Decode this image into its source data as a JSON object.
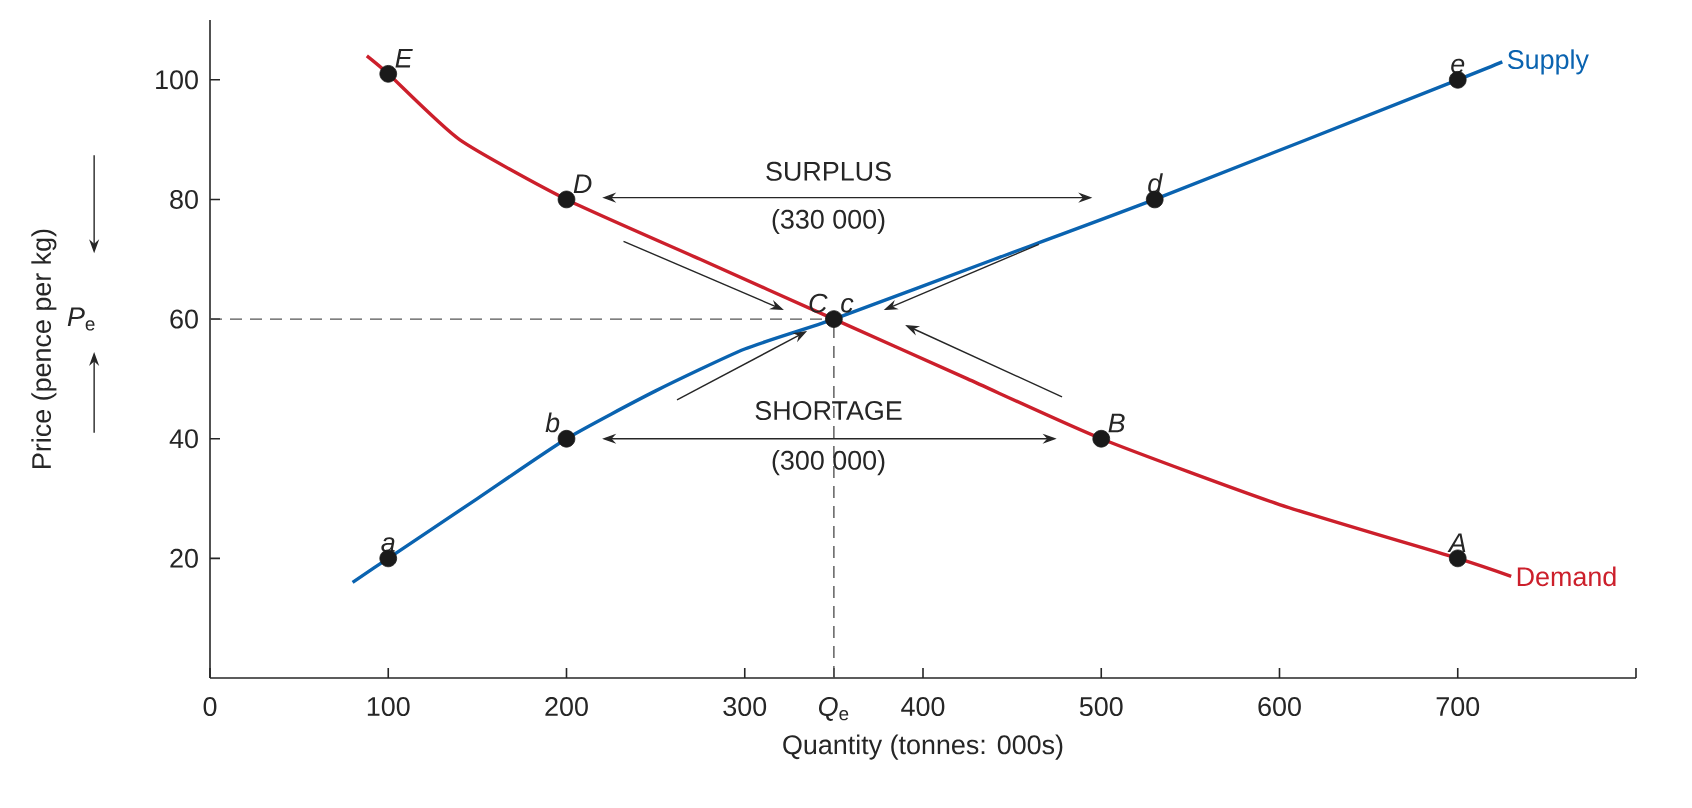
{
  "chart_data": {
    "type": "line",
    "xlabel": "Quantity (tonnes: 000s)",
    "ylabel": "Price (pence per kg)",
    "xlim": [
      0,
      800
    ],
    "ylim": [
      0,
      110
    ],
    "xticks": [
      0,
      100,
      200,
      300,
      {
        "value": 350,
        "label": "*Q*$_{e}$"
      },
      400,
      500,
      600,
      700,
      {
        "value": 800,
        "label": null
      }
    ],
    "yticks": [
      20,
      40,
      60,
      80,
      100
    ],
    "series": [
      {
        "name": "Supply",
        "color": "#0a63b0",
        "marker": "none",
        "line_style": "solid",
        "x": [
          80,
          100,
          150,
          200,
          250,
          300,
          350,
          440,
          530,
          700,
          725
        ],
        "values": [
          16,
          20,
          30,
          40,
          48,
          55,
          60,
          70,
          80,
          100,
          103
        ]
      },
      {
        "name": "Demand",
        "color": "#cc1f2b",
        "marker": "none",
        "line_style": "solid",
        "x": [
          88,
          100,
          140,
          200,
          275,
          350,
          425,
          500,
          600,
          700,
          730
        ],
        "values": [
          104,
          101,
          90,
          80,
          70,
          60,
          50,
          40,
          29,
          20,
          17
        ]
      },
      {
        "type": "scatter",
        "color": "#1a1a1a",
        "marker": "circle",
        "x": [
          100,
          200,
          350,
          530,
          700,
          100,
          200,
          500,
          700
        ],
        "values": [
          20,
          40,
          60,
          80,
          100,
          101,
          80,
          40,
          20
        ]
      }
    ],
    "ref_lines": [
      {
        "axis": "y",
        "value": 60,
        "color": "#555555",
        "line_style": "dashed"
      },
      {
        "axis": "x",
        "value": 350,
        "color": "#555555",
        "line_style": "dashed"
      }
    ],
    "annotations": [
      "SURPLUS",
      "(330 000)",
      "SHORTAGE",
      "(300 000)",
      "*P*$_{e}$",
      {
        "text": "E",
        "x": 100,
        "y": 101
      },
      {
        "text": "D",
        "x": 200,
        "y": 80
      },
      {
        "text": "C",
        "x": 350,
        "y": 60
      },
      {
        "text": "c",
        "x": 350,
        "y": 60
      },
      {
        "text": "B",
        "x": 500,
        "y": 40
      },
      {
        "text": "A",
        "x": 700,
        "y": 20
      },
      {
        "text": "a",
        "x": 100,
        "y": 20
      },
      {
        "text": "b",
        "x": 200,
        "y": 40
      },
      {
        "text": "d",
        "x": 530,
        "y": 80
      },
      {
        "text": "e",
        "x": 700,
        "y": 100
      }
    ]
  }
}
